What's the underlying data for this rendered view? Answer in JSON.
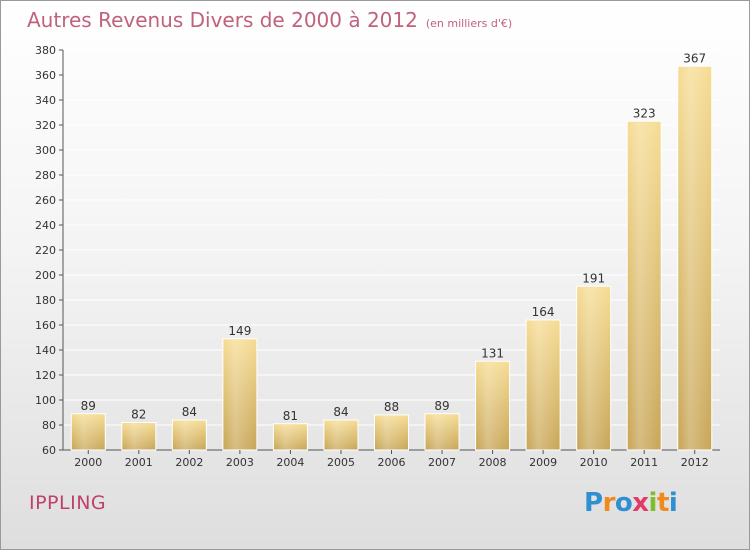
{
  "page": {
    "title": "Autres Revenus Divers de 2000 à 2012",
    "title_unit": "(en milliers d'€)",
    "commune": "IPPLING",
    "logo": {
      "text": "Proxiti",
      "letter_colors": [
        "#2f8fd0",
        "#f08a1c",
        "#2f8fd0",
        "#e23b6a",
        "#7cbf2a",
        "#f08a1c",
        "#2f8fd0"
      ]
    }
  },
  "colors": {
    "bar_light": "#f6dc94",
    "bar_dark": "#c8a658",
    "title": "#c0627c",
    "commune": "#c0406a",
    "grid": "#ffffff"
  },
  "chart_data": {
    "type": "bar",
    "title": "Autres Revenus Divers de 2000 à 2012",
    "subtitle": "(en milliers d'€)",
    "categories": [
      "2000",
      "2001",
      "2002",
      "2003",
      "2004",
      "2005",
      "2006",
      "2007",
      "2008",
      "2009",
      "2010",
      "2011",
      "2012"
    ],
    "values": [
      89,
      82,
      84,
      149,
      81,
      84,
      88,
      89,
      131,
      164,
      191,
      323,
      367
    ],
    "ylim": [
      60,
      380
    ],
    "yticks": [
      60,
      80,
      100,
      120,
      140,
      160,
      180,
      200,
      220,
      240,
      260,
      280,
      300,
      320,
      340,
      360,
      380
    ],
    "grid": true,
    "data_labels": true
  }
}
